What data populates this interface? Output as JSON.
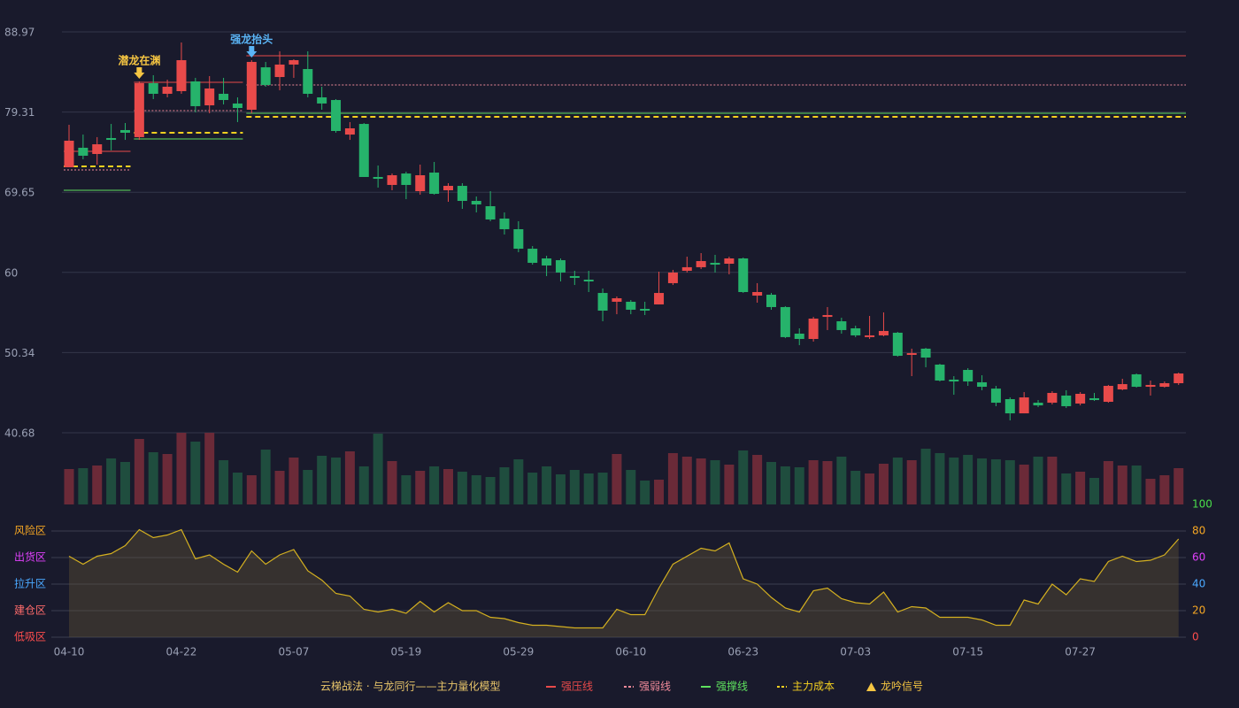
{
  "chart_data": {
    "type": "candlestick",
    "categories": [
      "04-10",
      null,
      null,
      null,
      null,
      null,
      null,
      null,
      "04-22",
      null,
      null,
      null,
      null,
      null,
      null,
      null,
      "05-07",
      null,
      null,
      null,
      null,
      null,
      null,
      null,
      "05-19",
      null,
      null,
      null,
      null,
      null,
      null,
      null,
      "05-29",
      null,
      null,
      null,
      null,
      null,
      null,
      null,
      "06-10",
      null,
      null,
      null,
      null,
      null,
      null,
      null,
      "06-23",
      null,
      null,
      null,
      null,
      null,
      null,
      null,
      "07-03",
      null,
      null,
      null,
      null,
      null,
      null,
      null,
      "07-15",
      null,
      null,
      null,
      null,
      null,
      null,
      null,
      "07-27",
      null,
      null,
      null,
      null,
      null,
      null,
      null
    ],
    "open": [
      72.66,
      75.01,
      74.26,
      76.18,
      77.14,
      76.29,
      82.79,
      81.51,
      81.83,
      83.0,
      80.12,
      81.51,
      80.34,
      79.59,
      84.7,
      83.53,
      85.03,
      84.49,
      81.08,
      80.76,
      76.6,
      77.88,
      71.49,
      70.53,
      71.91,
      69.78,
      72.02,
      69.89,
      70.42,
      68.61,
      67.97,
      66.48,
      65.2,
      62.85,
      61.68,
      61.47,
      59.55,
      59.12,
      57.52,
      56.46,
      56.46,
      55.6,
      56.14,
      58.7,
      60.19,
      60.62,
      61.15,
      61.04,
      61.68,
      57.2,
      57.31,
      55.82,
      52.62,
      51.98,
      54.64,
      54.11,
      53.26,
      52.2,
      52.41,
      52.73,
      50.06,
      50.81,
      48.89,
      47.08,
      48.25,
      46.76,
      46.0,
      44.73,
      43.02,
      44.3,
      44.3,
      45.16,
      44.2,
      44.84,
      44.41,
      45.9,
      47.72,
      46.22,
      46.22,
      46.65
    ],
    "high": [
      77.78,
      76.6,
      76.29,
      77.88,
      77.99,
      83.0,
      83.75,
      83.21,
      87.69,
      83.43,
      83.64,
      83.43,
      81.08,
      85.56,
      85.35,
      86.63,
      85.67,
      86.63,
      82.36,
      80.87,
      78.1,
      77.99,
      72.87,
      71.91,
      72.13,
      72.98,
      73.3,
      70.74,
      70.74,
      69.14,
      69.78,
      67.22,
      66.16,
      63.17,
      62.0,
      61.68,
      60.19,
      60.19,
      58.06,
      57.1,
      56.67,
      56.46,
      60.08,
      60.3,
      61.89,
      62.32,
      62.11,
      61.89,
      61.79,
      58.7,
      57.52,
      55.93,
      53.26,
      54.64,
      55.82,
      54.54,
      53.58,
      54.75,
      55.18,
      52.83,
      50.81,
      50.91,
      48.99,
      47.5,
      48.46,
      47.61,
      46.33,
      44.94,
      45.58,
      44.62,
      45.69,
      45.8,
      45.58,
      45.48,
      46.44,
      47.18,
      47.82,
      46.97,
      46.86,
      47.93
    ],
    "low": [
      72.66,
      73.62,
      72.98,
      74.69,
      75.96,
      75.96,
      80.87,
      81.08,
      81.51,
      79.27,
      79.16,
      80.23,
      78.1,
      79.16,
      82.36,
      81.93,
      83.43,
      81.08,
      79.59,
      76.82,
      75.96,
      71.49,
      70.21,
      69.89,
      68.82,
      69.36,
      69.36,
      68.5,
      67.65,
      67.22,
      66.16,
      64.56,
      62.43,
      60.93,
      59.55,
      58.91,
      58.48,
      57.63,
      54.11,
      54.96,
      54.96,
      54.86,
      56.14,
      58.48,
      59.98,
      60.4,
      59.98,
      59.76,
      57.52,
      56.35,
      55.5,
      52.08,
      51.23,
      51.66,
      53.05,
      52.62,
      52.2,
      51.98,
      52.3,
      49.85,
      47.5,
      48.57,
      46.86,
      45.26,
      46.33,
      45.8,
      43.88,
      42.17,
      43.02,
      43.77,
      44.09,
      43.66,
      43.98,
      44.52,
      44.3,
      45.8,
      46.12,
      45.16,
      46.12,
      46.44
    ],
    "close": [
      75.86,
      74.05,
      75.43,
      75.96,
      76.82,
      82.79,
      81.51,
      82.36,
      85.56,
      80.02,
      82.15,
      80.76,
      79.8,
      85.35,
      82.57,
      85.03,
      85.56,
      81.51,
      80.34,
      77.03,
      77.35,
      71.49,
      71.27,
      71.7,
      70.53,
      71.7,
      69.46,
      70.42,
      68.61,
      68.18,
      66.37,
      65.2,
      62.85,
      61.15,
      60.83,
      59.98,
      59.34,
      58.91,
      55.39,
      56.88,
      55.5,
      55.39,
      57.52,
      59.98,
      60.62,
      61.36,
      60.93,
      61.68,
      57.63,
      57.63,
      55.82,
      52.2,
      51.98,
      54.43,
      54.86,
      53.05,
      52.41,
      52.41,
      52.94,
      49.95,
      50.27,
      49.74,
      46.97,
      46.86,
      46.86,
      46.22,
      44.3,
      43.02,
      44.94,
      43.98,
      45.48,
      43.88,
      45.37,
      44.62,
      46.33,
      46.54,
      46.22,
      46.44,
      46.65,
      47.82
    ],
    "volume": [
      40,
      41,
      44,
      52,
      48,
      74,
      59,
      57,
      81,
      71,
      81,
      50,
      36,
      33,
      62,
      38,
      53,
      39,
      55,
      53,
      60,
      43,
      80,
      49,
      33,
      38,
      43,
      40,
      37,
      33,
      31,
      42,
      51,
      36,
      43,
      34,
      39,
      35,
      36,
      57,
      39,
      27,
      28,
      58,
      54,
      52,
      50,
      45,
      61,
      56,
      48,
      43,
      42,
      50,
      49,
      54,
      38,
      35,
      46,
      53,
      50,
      63,
      58,
      53,
      56,
      52,
      51,
      50,
      45,
      54,
      54,
      35,
      37,
      30,
      49,
      44,
      44,
      29,
      33,
      41
    ],
    "ylim": [
      40.68,
      88.97
    ],
    "yticks": [
      88.97,
      79.31,
      69.65,
      60.0,
      50.34,
      40.68
    ],
    "up_color": "#e84a4a",
    "down_color": "#26b36b",
    "grid": true,
    "levels": [
      {
        "name": "强压线",
        "color": "#e84a4a",
        "style": "solid",
        "segments": [
          {
            "from": 0,
            "to": 4,
            "value": 74.58
          },
          {
            "from": 5,
            "to": 12,
            "value": 82.89
          },
          {
            "from": 13,
            "to": 79,
            "value": 86.09
          }
        ]
      },
      {
        "name": "强弱线",
        "color": "#f08a9a",
        "style": "dashed",
        "segments": [
          {
            "from": 0,
            "to": 4,
            "value": 72.34
          },
          {
            "from": 5,
            "to": 12,
            "value": 79.48
          },
          {
            "from": 13,
            "to": 79,
            "value": 82.57
          }
        ]
      },
      {
        "name": "强撑线",
        "color": "#5ee05e",
        "style": "solid",
        "segments": [
          {
            "from": 0,
            "to": 4,
            "value": 69.89
          },
          {
            "from": 5,
            "to": 12,
            "value": 76.07
          },
          {
            "from": 13,
            "to": 79,
            "value": 79.16
          }
        ]
      },
      {
        "name": "主力成本",
        "color": "#f5d020",
        "style": "dashed",
        "segments": [
          {
            "from": 0,
            "to": 4,
            "value": 72.77
          },
          {
            "from": 5,
            "to": 12,
            "value": 76.82
          },
          {
            "from": 13,
            "to": 79,
            "value": 78.74
          }
        ]
      }
    ],
    "signals": [
      {
        "index": 5,
        "label": "潜龙在渊",
        "color": "#f5c542"
      },
      {
        "index": 13,
        "label": "强龙抬头",
        "color": "#5ab4f5"
      }
    ],
    "signal_legend": {
      "name": "龙吟信号",
      "color": "#f5c542"
    },
    "legend_title": "云梯战法 · 与龙同行——主力量化模型",
    "indicator": {
      "values": [
        61,
        55,
        61,
        63,
        69,
        81,
        75,
        77,
        81,
        59,
        62,
        55,
        49,
        65,
        55,
        62,
        66,
        50,
        43,
        33,
        31,
        21,
        19,
        21,
        18,
        27,
        19,
        26,
        20,
        20,
        15,
        14,
        11,
        9,
        9,
        8,
        7,
        7,
        7,
        21,
        17,
        17,
        37,
        55,
        61,
        67,
        65,
        71,
        44,
        40,
        30,
        22,
        19,
        35,
        37,
        29,
        26,
        25,
        34,
        19,
        23,
        22,
        15,
        15,
        15,
        13,
        9,
        9,
        28,
        25,
        40,
        32,
        44,
        42,
        57,
        61,
        57,
        58,
        62,
        74
      ],
      "color": "#d4b020",
      "ylim": [
        0,
        100
      ],
      "yticks": [
        100,
        80,
        60,
        40,
        20,
        0
      ],
      "tick_colors": [
        "#4ade4a",
        "#f5a623",
        "#e040fb",
        "#4aa8ff",
        "#f5a623",
        "#ff4d4d"
      ],
      "zones": [
        {
          "value": 80,
          "label": "风险区",
          "color": "#f5a623"
        },
        {
          "value": 60,
          "label": "出货区",
          "color": "#e040fb"
        },
        {
          "value": 40,
          "label": "拉升区",
          "color": "#4aa8ff"
        },
        {
          "value": 20,
          "label": "建仓区",
          "color": "#ff6b6b"
        },
        {
          "value": 0,
          "label": "低吸区",
          "color": "#ff4d4d"
        }
      ]
    }
  }
}
